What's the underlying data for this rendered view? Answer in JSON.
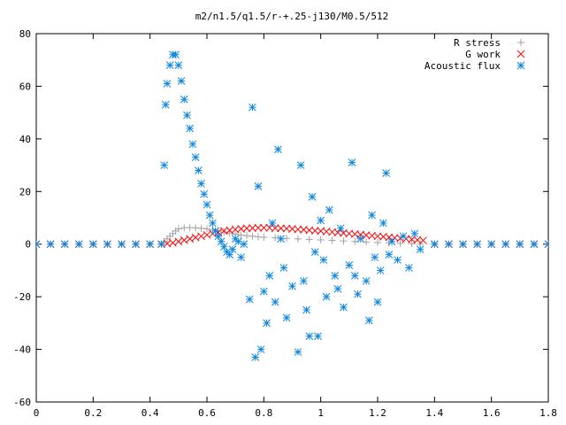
{
  "chart_data": {
    "type": "scatter",
    "title": "m2/n1.5/q1.5/r-+.25-j130/M0.5/512",
    "xlabel": "",
    "ylabel": "",
    "xlim": [
      0,
      1.8
    ],
    "ylim": [
      -60,
      80
    ],
    "xticks": [
      "0",
      "0.2",
      "0.4",
      "0.6",
      "0.8",
      "1",
      "1.2",
      "1.4",
      "1.6",
      "1.8"
    ],
    "yticks": [
      "-60",
      "-40",
      "-20",
      "0",
      "20",
      "40",
      "60",
      "80"
    ],
    "grid": false,
    "legend_position": "top-right",
    "series": [
      {
        "name": "R stress",
        "marker": "+",
        "color": "#a0a0a0",
        "x": [
          0.0,
          0.05,
          0.1,
          0.15,
          0.2,
          0.25,
          0.3,
          0.35,
          0.4,
          0.44,
          0.45,
          0.46,
          0.47,
          0.48,
          0.49,
          0.5,
          0.52,
          0.54,
          0.56,
          0.58,
          0.6,
          0.62,
          0.64,
          0.66,
          0.68,
          0.7,
          0.72,
          0.74,
          0.76,
          0.78,
          0.8,
          0.84,
          0.88,
          0.92,
          0.96,
          1.0,
          1.04,
          1.08,
          1.12,
          1.16,
          1.2,
          1.24,
          1.28,
          1.32,
          1.35,
          1.4,
          1.45,
          1.5,
          1.55,
          1.6,
          1.65,
          1.7,
          1.75,
          1.8
        ],
        "y": [
          0,
          0,
          0,
          0,
          0,
          0,
          0,
          0,
          0,
          0,
          1.0,
          2.0,
          3.0,
          4.0,
          5.0,
          5.8,
          6.2,
          6.3,
          6.2,
          6.0,
          5.8,
          5.4,
          5.0,
          4.6,
          4.2,
          3.8,
          3.5,
          3.2,
          3.0,
          2.8,
          2.6,
          2.4,
          2.2,
          2.0,
          1.8,
          1.6,
          1.4,
          1.2,
          1.0,
          0.8,
          0.6,
          0.5,
          0.3,
          0.2,
          0,
          0,
          0,
          0,
          0,
          0,
          0,
          0,
          0,
          0
        ]
      },
      {
        "name": "G work",
        "marker": "x",
        "color": "#ff0000",
        "x": [
          0.0,
          0.05,
          0.1,
          0.15,
          0.2,
          0.25,
          0.3,
          0.35,
          0.4,
          0.44,
          0.46,
          0.48,
          0.5,
          0.52,
          0.54,
          0.56,
          0.58,
          0.6,
          0.62,
          0.64,
          0.66,
          0.68,
          0.7,
          0.72,
          0.74,
          0.76,
          0.78,
          0.8,
          0.82,
          0.84,
          0.86,
          0.88,
          0.9,
          0.92,
          0.94,
          0.96,
          0.98,
          1.0,
          1.02,
          1.04,
          1.06,
          1.08,
          1.1,
          1.12,
          1.14,
          1.16,
          1.18,
          1.2,
          1.22,
          1.24,
          1.26,
          1.28,
          1.3,
          1.32,
          1.34,
          1.36,
          1.4,
          1.45,
          1.5,
          1.55,
          1.6,
          1.65,
          1.7,
          1.75,
          1.8
        ],
        "y": [
          0,
          0,
          0,
          0,
          0,
          0,
          0,
          0,
          0,
          0,
          0.2,
          0.5,
          1.0,
          1.5,
          2.0,
          2.5,
          3.0,
          3.5,
          4.0,
          4.5,
          5.0,
          5.3,
          5.6,
          5.8,
          6.0,
          6.1,
          6.2,
          6.2,
          6.2,
          6.1,
          6.0,
          5.9,
          5.8,
          5.6,
          5.5,
          5.3,
          5.1,
          5.0,
          4.8,
          4.6,
          4.4,
          4.2,
          4.0,
          3.8,
          3.6,
          3.4,
          3.2,
          3.0,
          2.8,
          2.6,
          2.4,
          2.2,
          2.0,
          1.8,
          1.6,
          1.4,
          0,
          0,
          0,
          0,
          0,
          0,
          0,
          0,
          0
        ]
      },
      {
        "name": "Acoustic flux",
        "marker": "*",
        "color": "#0b85e0",
        "x": [
          0.0,
          0.05,
          0.1,
          0.15,
          0.2,
          0.25,
          0.3,
          0.35,
          0.4,
          0.44,
          0.45,
          0.455,
          0.46,
          0.47,
          0.48,
          0.49,
          0.5,
          0.51,
          0.52,
          0.53,
          0.54,
          0.55,
          0.56,
          0.57,
          0.58,
          0.59,
          0.6,
          0.61,
          0.62,
          0.63,
          0.64,
          0.65,
          0.66,
          0.67,
          0.68,
          0.69,
          0.7,
          0.71,
          0.72,
          0.73,
          0.75,
          0.77,
          0.76,
          0.78,
          0.79,
          0.8,
          0.81,
          0.82,
          0.83,
          0.84,
          0.85,
          0.86,
          0.87,
          0.88,
          0.9,
          0.92,
          0.93,
          0.94,
          0.95,
          0.96,
          0.97,
          0.98,
          0.99,
          1.0,
          1.01,
          1.02,
          1.03,
          1.05,
          1.06,
          1.07,
          1.08,
          1.1,
          1.11,
          1.12,
          1.13,
          1.14,
          1.16,
          1.17,
          1.18,
          1.19,
          1.2,
          1.21,
          1.22,
          1.23,
          1.24,
          1.25,
          1.27,
          1.29,
          1.31,
          1.33,
          1.35,
          1.4,
          1.45,
          1.5,
          1.55,
          1.6,
          1.65,
          1.7,
          1.75,
          1.8
        ],
        "y": [
          0,
          0,
          0,
          0,
          0,
          0,
          0,
          0,
          0,
          0,
          30,
          53,
          61,
          68,
          72,
          72,
          68,
          62,
          55,
          49,
          44,
          38,
          33,
          28,
          23,
          19,
          15,
          11,
          8,
          5,
          3,
          1,
          -1,
          -3,
          -4,
          -2,
          2,
          1,
          -5,
          0,
          -21,
          -43,
          52,
          22,
          -40,
          -18,
          -30,
          -12,
          8,
          -22,
          36,
          2,
          -9,
          -28,
          -16,
          -41,
          30,
          -14,
          -25,
          -35,
          18,
          -3,
          -35,
          9,
          -6,
          -20,
          13,
          -12,
          -17,
          6,
          -24,
          -8,
          31,
          -12,
          -19,
          2,
          -14,
          -29,
          11,
          -5,
          -22,
          -10,
          8,
          27,
          -4,
          1,
          -6,
          3,
          -9,
          4,
          -2,
          0,
          0,
          0,
          0,
          0,
          0,
          0,
          0,
          0
        ]
      }
    ]
  }
}
